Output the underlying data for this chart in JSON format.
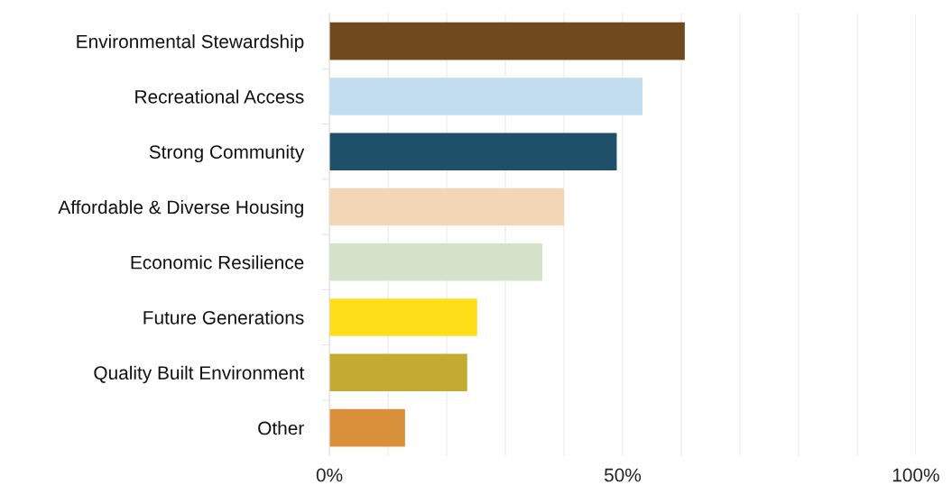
{
  "chart_data": {
    "type": "bar",
    "orientation": "horizontal",
    "categories": [
      "Environmental Stewardship",
      "Recreational Access",
      "Strong Community",
      "Affordable & Diverse Housing",
      "Economic Resilience",
      "Future Generations",
      "Quality Built Environment",
      "Other"
    ],
    "values": [
      60.6,
      53.4,
      49.0,
      40.0,
      36.3,
      25.2,
      23.5,
      12.9
    ],
    "colors": [
      "#71491e",
      "#c2ddef",
      "#1f5069",
      "#f2d6b6",
      "#d3e2c9",
      "#fedd19",
      "#c3aa31",
      "#d8913a"
    ],
    "xlim": [
      0,
      100
    ],
    "xticks": [
      {
        "value": 0,
        "label": "0%"
      },
      {
        "value": 10,
        "label": null
      },
      {
        "value": 20,
        "label": null
      },
      {
        "value": 30,
        "label": null
      },
      {
        "value": 40,
        "label": null
      },
      {
        "value": 50,
        "label": "50%"
      },
      {
        "value": 60,
        "label": null
      },
      {
        "value": 70,
        "label": null
      },
      {
        "value": 80,
        "label": null
      },
      {
        "value": 90,
        "label": null
      },
      {
        "value": 100,
        "label": "100%"
      }
    ],
    "grid": "x",
    "legend": false
  }
}
